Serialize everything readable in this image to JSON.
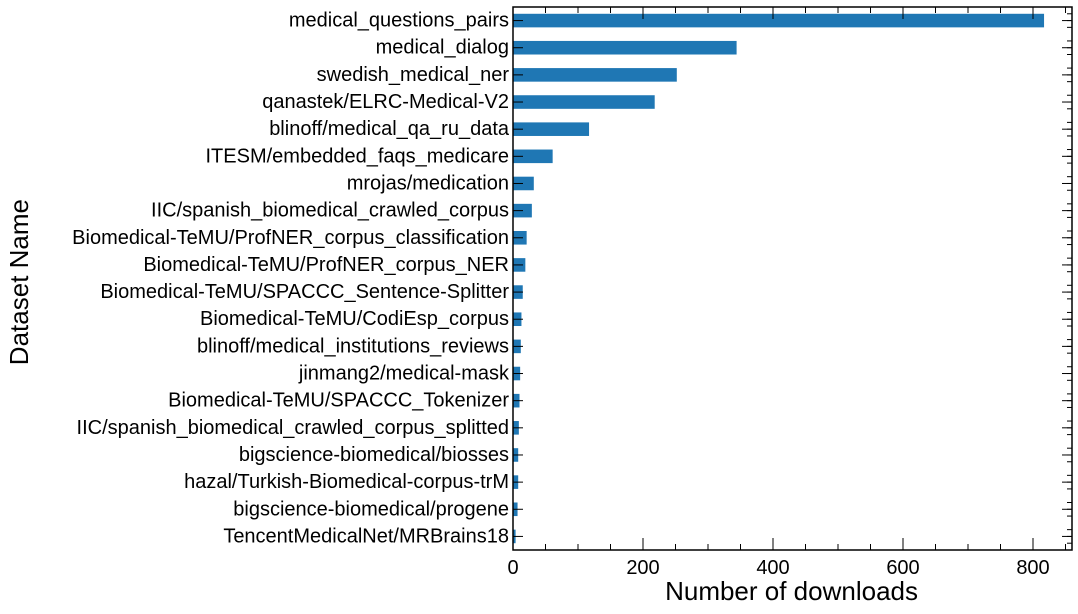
{
  "chart_data": {
    "type": "bar",
    "orientation": "horizontal",
    "xlabel": "Number of downloads",
    "ylabel": "Dataset Name",
    "xlim": [
      0,
      860
    ],
    "xticks": [
      0,
      200,
      400,
      600,
      800
    ],
    "bar_color": "#1f77b4",
    "grid": false,
    "categories": [
      "medical_questions_pairs",
      "medical_dialog",
      "swedish_medical_ner",
      "qanastek/ELRC-Medical-V2",
      "blinoff/medical_qa_ru_data",
      "ITESM/embedded_faqs_medicare",
      "mrojas/medication",
      "IIC/spanish_biomedical_crawled_corpus",
      "Biomedical-TeMU/ProfNER_corpus_classification",
      "Biomedical-TeMU/ProfNER_corpus_NER",
      "Biomedical-TeMU/SPACCC_Sentence-Splitter",
      "Biomedical-TeMU/CodiEsp_corpus",
      "blinoff/medical_institutions_reviews",
      "jinmang2/medical-mask",
      "Biomedical-TeMU/SPACCC_Tokenizer",
      "IIC/spanish_biomedical_crawled_corpus_splitted",
      "bigscience-biomedical/biosses",
      "hazal/Turkish-Biomedical-corpus-trM",
      "bigscience-biomedical/progene",
      "TencentMedicalNet/MRBrains18"
    ],
    "values": [
      817,
      344,
      252,
      218,
      117,
      61,
      32,
      29,
      21,
      19,
      15,
      13,
      12,
      11,
      10,
      9,
      8,
      8,
      7,
      4
    ]
  }
}
